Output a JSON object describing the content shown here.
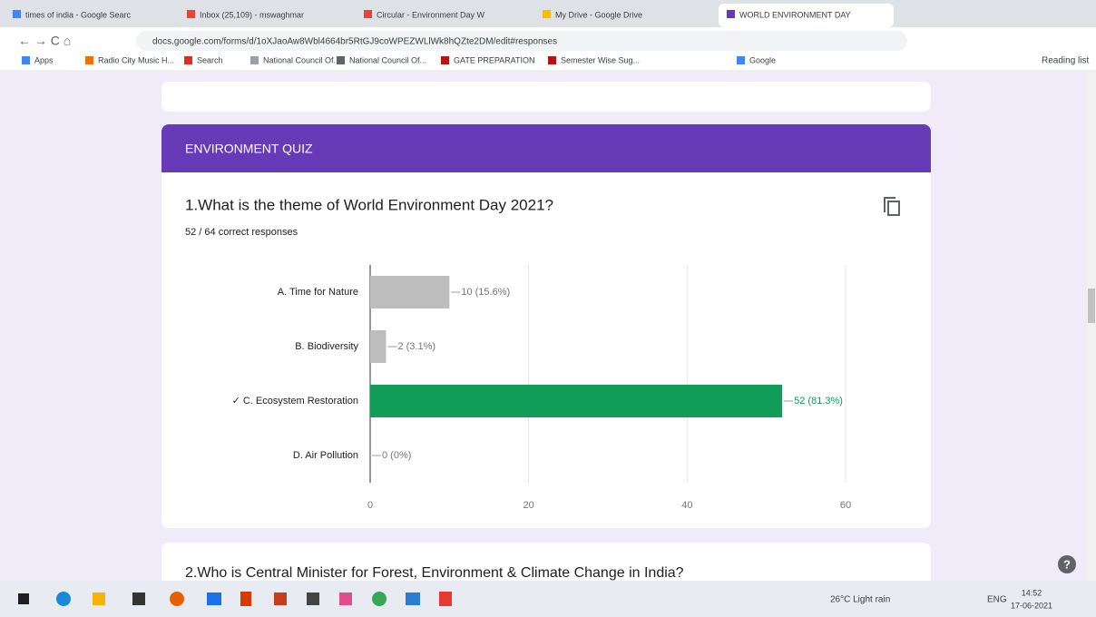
{
  "browser": {
    "tabs": [
      "times of india - Google Searc",
      "Inbox (25,109) - mswaghmar",
      "Circular - Environment Day W",
      "My Drive - Google Drive",
      "WORLD ENVIRONMENT DAY"
    ],
    "url": "docs.google.com/forms/d/1oXJaoAw8Wbl4664br5RtGJ9coWPEZWLlWk8hQZte2DM/edit#responses",
    "bookmarks": [
      "Apps",
      "Radio City Music H...",
      "Search",
      "National Council Of...",
      "National Council Of...",
      "GATE PREPARATION",
      "Semester Wise Sug...",
      "Google"
    ],
    "reading_list": "Reading list"
  },
  "form": {
    "title": "ENVIRONMENT QUIZ",
    "question1": "1.What is the theme of World Environment Day 2021?",
    "correct": "52 / 64 correct responses",
    "question2": "2.Who is Central Minister for Forest, Environment & Climate Change in India?"
  },
  "chart_data": {
    "type": "bar",
    "orientation": "horizontal",
    "categories": [
      "A. Time for Nature",
      "B. Biodiversity",
      "✓ C. Ecosystem Restoration",
      "D. Air Pollution"
    ],
    "values": [
      10,
      2,
      52,
      0
    ],
    "value_labels": [
      "10 (15.6%)",
      "2 (3.1%)",
      "52 (81.3%)",
      "0 (0%)"
    ],
    "colors": [
      "#bdbdbd",
      "#bdbdbd",
      "#0f9d58",
      "#bdbdbd"
    ],
    "xlim": [
      0,
      60
    ],
    "xticks": [
      0,
      20,
      40,
      60
    ],
    "grid": true
  },
  "taskbar": {
    "weather": "26°C  Light rain",
    "language": "ENG",
    "time": "14:52",
    "date": "17-06-2021"
  }
}
